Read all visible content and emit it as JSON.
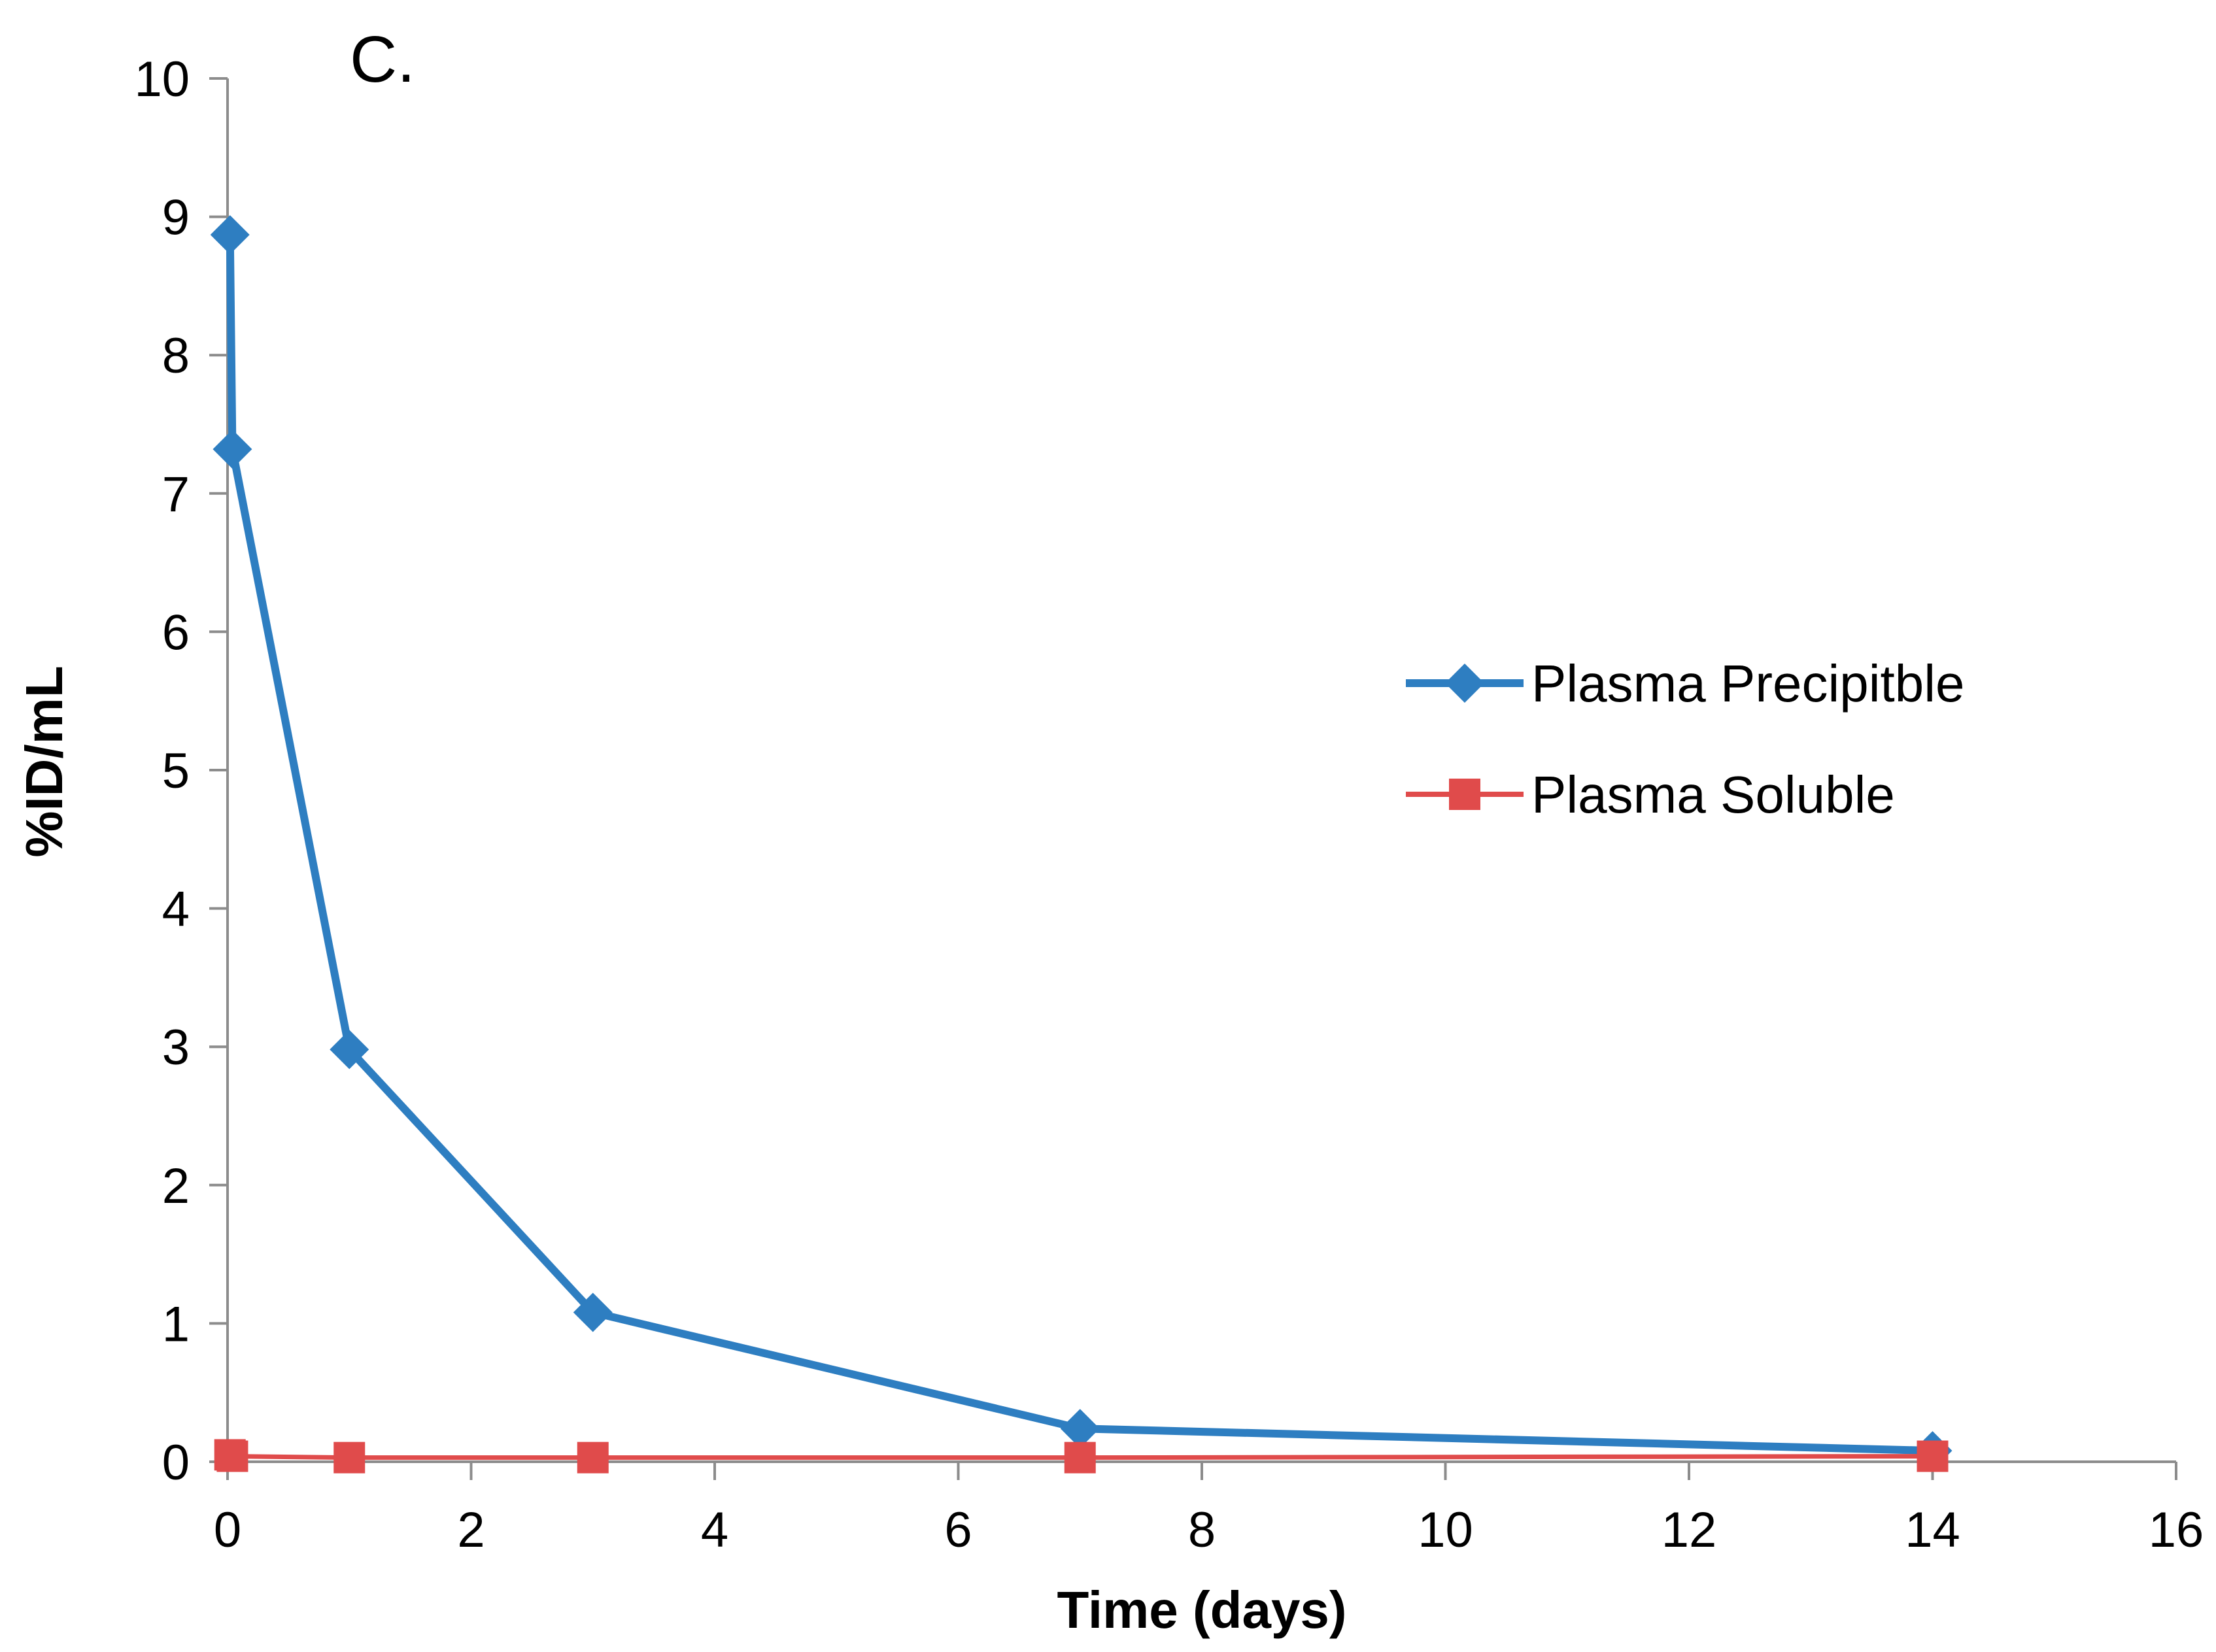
{
  "chart_data": {
    "type": "line",
    "panel_label": "C.",
    "title": "",
    "xlabel": "Time (days)",
    "ylabel": "%ID/mL",
    "xlim": [
      0,
      16
    ],
    "ylim": [
      0,
      10
    ],
    "xticks": [
      0,
      2,
      4,
      6,
      8,
      10,
      12,
      14,
      16
    ],
    "yticks": [
      0,
      1,
      2,
      3,
      4,
      5,
      6,
      7,
      8,
      9,
      10
    ],
    "xtick_labels": [
      "0",
      "2",
      "4",
      "6",
      "8",
      "10",
      "12",
      "14",
      "16"
    ],
    "ytick_labels": [
      "0",
      "1",
      "2",
      "3",
      "4",
      "5",
      "6",
      "7",
      "8",
      "9",
      "10"
    ],
    "grid": false,
    "legend_position": "right",
    "series": [
      {
        "name": "Plasma Precipitble",
        "color": "#2E7EC1",
        "marker": "diamond",
        "x": [
          0.02,
          0.04,
          1,
          3,
          7,
          14
        ],
        "y": [
          8.87,
          7.32,
          2.98,
          1.08,
          0.24,
          0.08
        ]
      },
      {
        "name": "Plasma Soluble",
        "color": "#E04B4B",
        "marker": "square",
        "x": [
          0.02,
          0.04,
          1,
          3,
          7,
          14
        ],
        "y": [
          0.05,
          0.04,
          0.03,
          0.03,
          0.03,
          0.04
        ]
      }
    ]
  }
}
